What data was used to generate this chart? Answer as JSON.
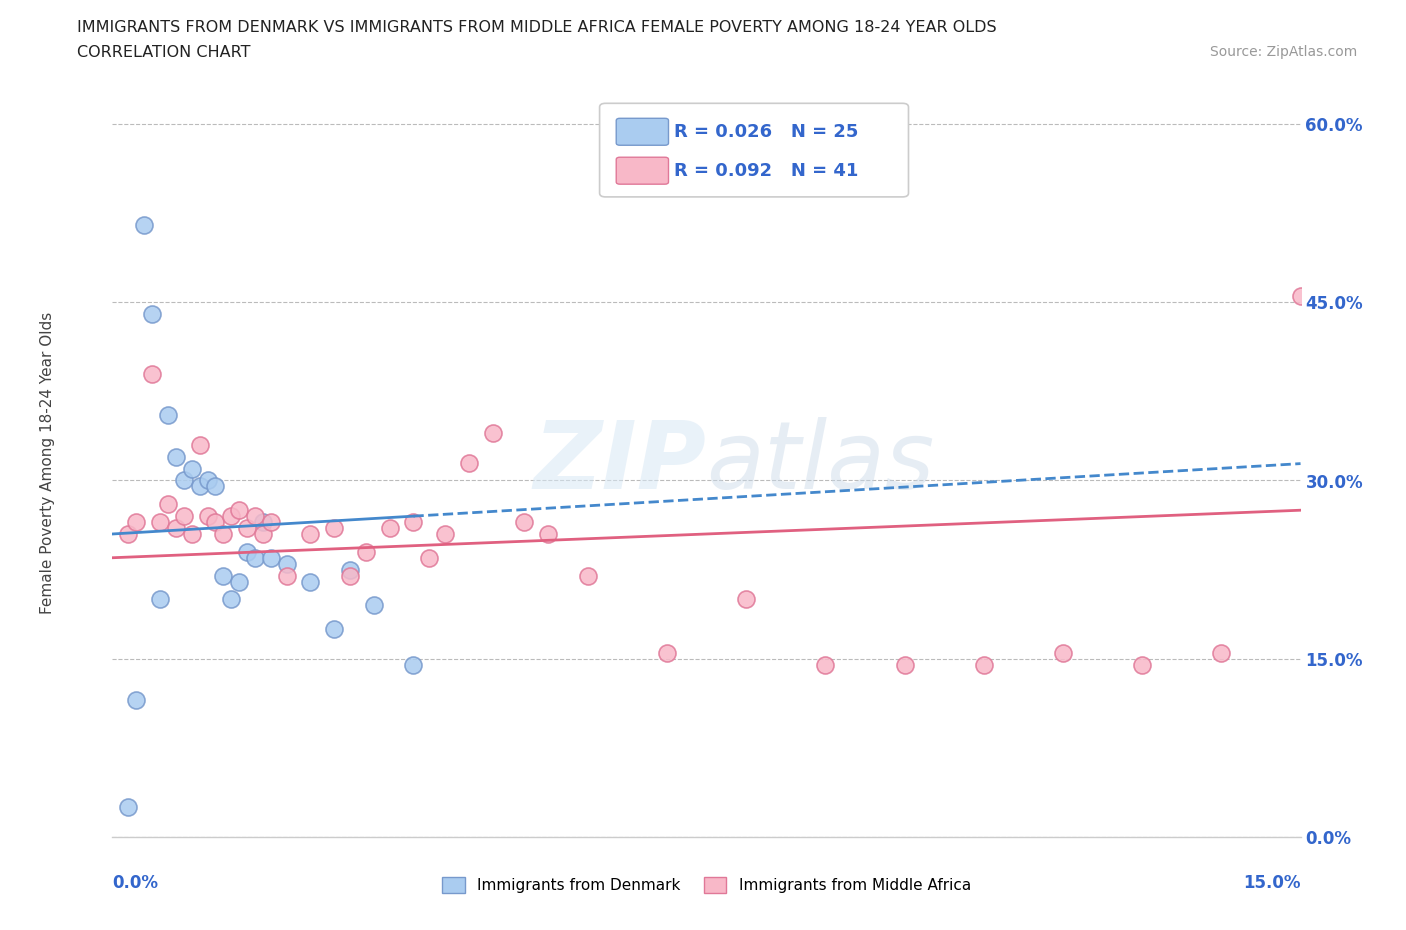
{
  "title": "IMMIGRANTS FROM DENMARK VS IMMIGRANTS FROM MIDDLE AFRICA FEMALE POVERTY AMONG 18-24 YEAR OLDS",
  "subtitle": "CORRELATION CHART",
  "source": "Source: ZipAtlas.com",
  "ylabel": "Female Poverty Among 18-24 Year Olds",
  "xlim": [
    0.0,
    0.15
  ],
  "ylim": [
    0.0,
    0.63
  ],
  "yticks": [
    0.0,
    0.15,
    0.3,
    0.45,
    0.6
  ],
  "ytick_labels": [
    "0.0%",
    "15.0%",
    "30.0%",
    "45.0%",
    "60.0%"
  ],
  "denmark_color": "#aaccf0",
  "denmark_edge": "#7799cc",
  "middle_africa_color": "#f8b8c8",
  "middle_africa_edge": "#e07898",
  "denmark_line_color": "#4488cc",
  "middle_africa_line_color": "#e06080",
  "legend_color": "#3366cc",
  "watermark_color": "#d0dff0",
  "watermark_text_color": "#c0d0e8",
  "denmark_x": [
    0.002,
    0.004,
    0.005,
    0.007,
    0.008,
    0.009,
    0.01,
    0.011,
    0.012,
    0.013,
    0.014,
    0.015,
    0.016,
    0.017,
    0.018,
    0.019,
    0.02,
    0.022,
    0.025,
    0.028,
    0.03,
    0.033,
    0.038,
    0.003,
    0.006
  ],
  "denmark_y": [
    0.025,
    0.515,
    0.44,
    0.355,
    0.32,
    0.3,
    0.31,
    0.295,
    0.3,
    0.295,
    0.22,
    0.2,
    0.215,
    0.24,
    0.235,
    0.265,
    0.235,
    0.23,
    0.215,
    0.175,
    0.225,
    0.195,
    0.145,
    0.115,
    0.2
  ],
  "middle_africa_x": [
    0.002,
    0.003,
    0.005,
    0.006,
    0.007,
    0.008,
    0.009,
    0.01,
    0.011,
    0.012,
    0.013,
    0.014,
    0.015,
    0.016,
    0.017,
    0.018,
    0.019,
    0.02,
    0.022,
    0.025,
    0.028,
    0.03,
    0.032,
    0.035,
    0.038,
    0.04,
    0.042,
    0.045,
    0.048,
    0.052,
    0.055,
    0.06,
    0.07,
    0.08,
    0.09,
    0.1,
    0.11,
    0.12,
    0.13,
    0.14,
    0.15
  ],
  "middle_africa_y": [
    0.255,
    0.265,
    0.39,
    0.265,
    0.28,
    0.26,
    0.27,
    0.255,
    0.33,
    0.27,
    0.265,
    0.255,
    0.27,
    0.275,
    0.26,
    0.27,
    0.255,
    0.265,
    0.22,
    0.255,
    0.26,
    0.22,
    0.24,
    0.26,
    0.265,
    0.235,
    0.255,
    0.315,
    0.34,
    0.265,
    0.255,
    0.22,
    0.155,
    0.2,
    0.145,
    0.145,
    0.145,
    0.155,
    0.145,
    0.155,
    0.455
  ],
  "dk_trend_x0": 0.0,
  "dk_trend_x1": 0.038,
  "dk_trend_y0": 0.255,
  "dk_trend_y1": 0.27,
  "ma_trend_x0": 0.0,
  "ma_trend_x1": 0.15,
  "ma_trend_y0": 0.235,
  "ma_trend_y1": 0.275
}
